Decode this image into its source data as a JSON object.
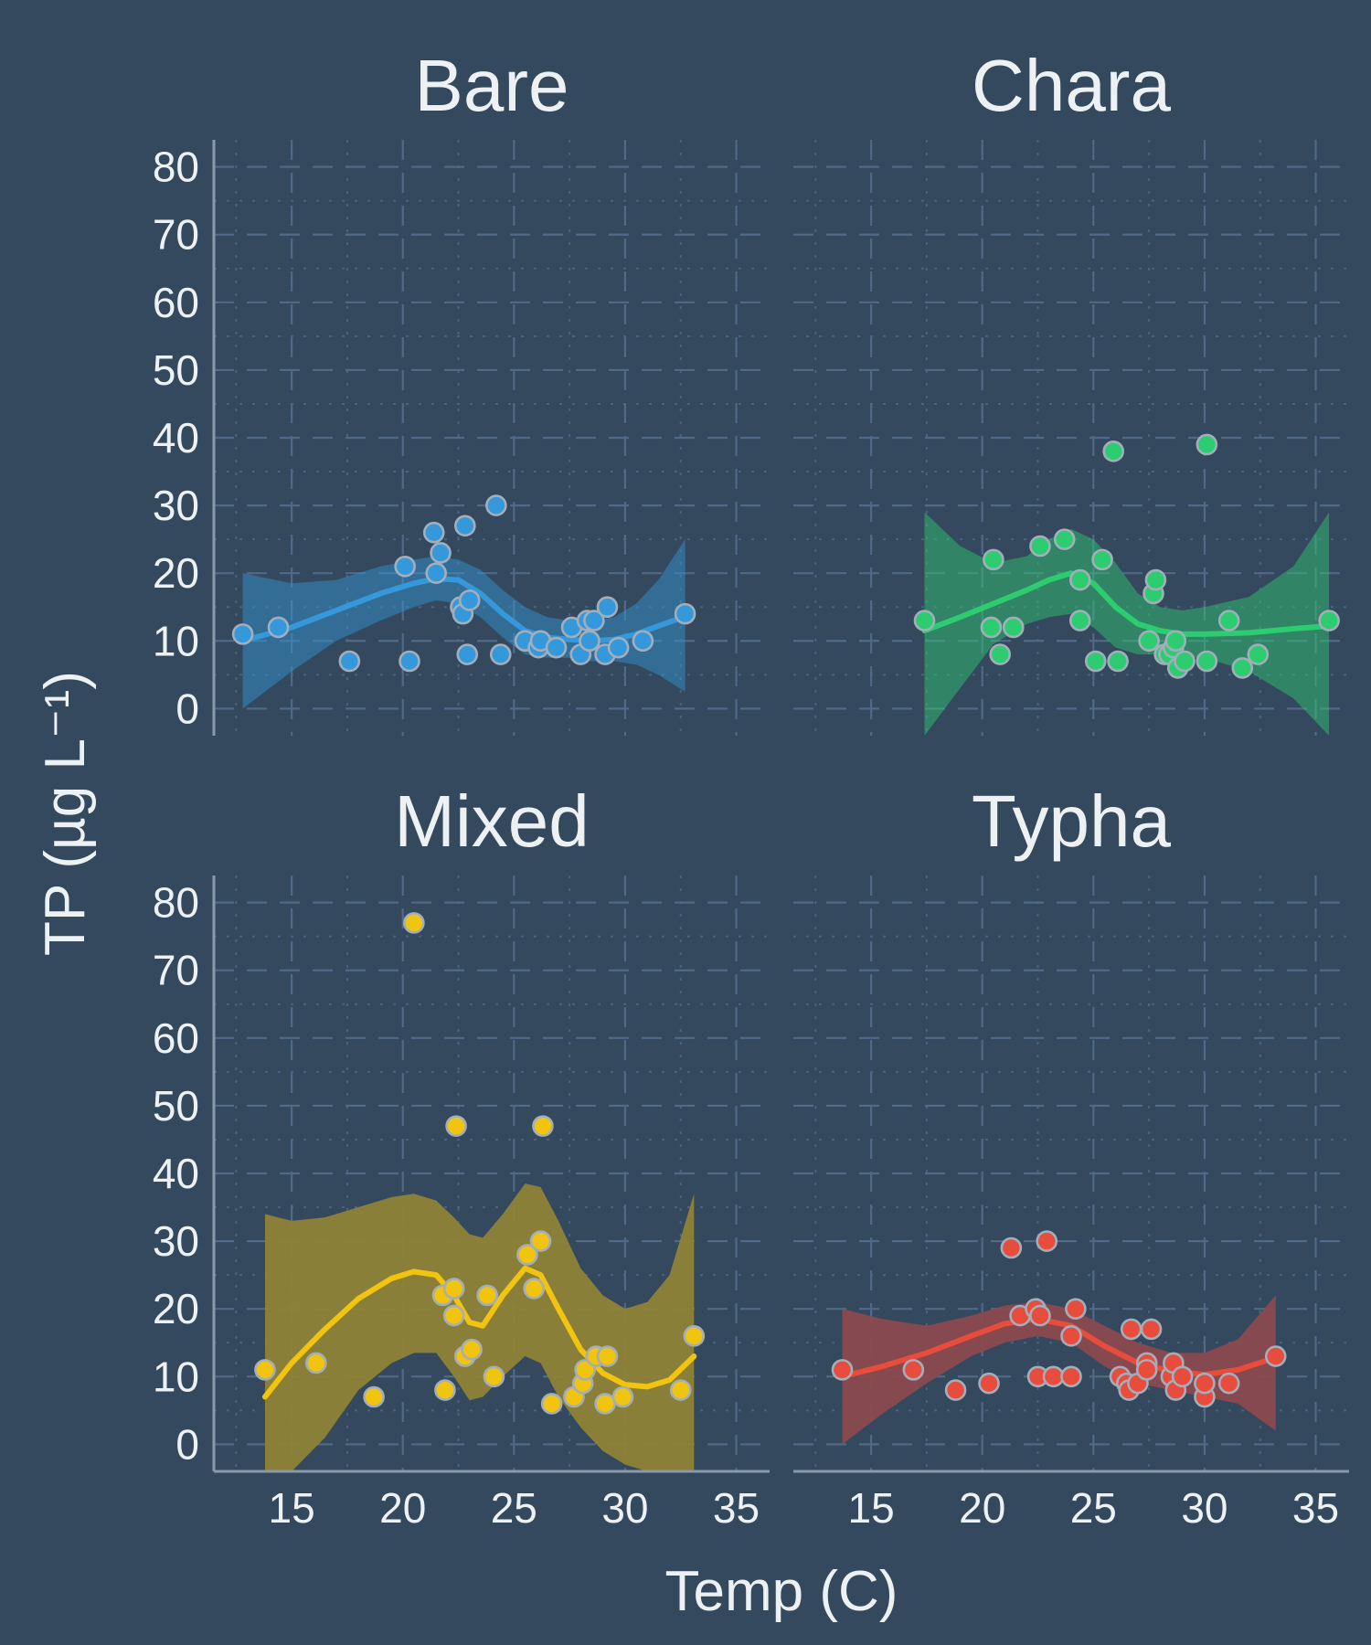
{
  "colors": {
    "background": "#34495e",
    "text": "#eef1f4",
    "Bare": "#3498db",
    "Chara": "#2ecc71",
    "Mixed": "#f1c40f",
    "Typha": "#e74c3c",
    "Mixed_ribbon": "#8f8336",
    "Typha_ribbon": "#8a4a4e"
  },
  "chart_data": {
    "type": "scatter",
    "layout": "facet_wrap 2x2",
    "xlabel": "Temp (C)",
    "ylabel": "TP (µg L⁻¹)",
    "xlim": [
      11.5,
      36.5
    ],
    "ylim": [
      -4,
      84
    ],
    "xticks": [
      15,
      20,
      25,
      30,
      35
    ],
    "yticks": [
      0,
      10,
      20,
      30,
      40,
      50,
      60,
      70,
      80
    ],
    "grid": true,
    "smooth": "loess with confidence band",
    "facets": [
      {
        "name": "Bare",
        "points": [
          [
            12.8,
            11
          ],
          [
            14.4,
            12
          ],
          [
            17.6,
            7
          ],
          [
            20.1,
            21
          ],
          [
            20.3,
            7
          ],
          [
            21.4,
            26
          ],
          [
            21.5,
            20
          ],
          [
            21.7,
            23
          ],
          [
            22.6,
            15
          ],
          [
            22.7,
            14
          ],
          [
            22.8,
            27
          ],
          [
            22.9,
            8
          ],
          [
            23.0,
            16
          ],
          [
            24.2,
            30
          ],
          [
            24.4,
            8
          ],
          [
            25.5,
            10
          ],
          [
            26.1,
            9
          ],
          [
            26.2,
            10
          ],
          [
            26.9,
            9
          ],
          [
            27.6,
            12
          ],
          [
            28.0,
            8
          ],
          [
            28.3,
            13
          ],
          [
            28.4,
            10
          ],
          [
            28.6,
            13
          ],
          [
            29.1,
            8
          ],
          [
            29.2,
            15
          ],
          [
            29.7,
            9
          ],
          [
            30.8,
            10
          ],
          [
            32.7,
            14
          ]
        ],
        "fit": [
          [
            12.8,
            10
          ],
          [
            15,
            12
          ],
          [
            17,
            14.5
          ],
          [
            19,
            17
          ],
          [
            20.5,
            18.5
          ],
          [
            21.5,
            19.2
          ],
          [
            22.5,
            19
          ],
          [
            23.5,
            17
          ],
          [
            24.5,
            14
          ],
          [
            25.5,
            11.5
          ],
          [
            26.5,
            10.5
          ],
          [
            27.5,
            10.2
          ],
          [
            28.5,
            10
          ],
          [
            29.5,
            10.2
          ],
          [
            30.5,
            11
          ],
          [
            31.5,
            12.2
          ],
          [
            32.7,
            13.6
          ]
        ],
        "upper": [
          [
            12.8,
            20
          ],
          [
            15,
            18.5
          ],
          [
            17,
            19
          ],
          [
            19,
            21
          ],
          [
            20.5,
            22
          ],
          [
            21.5,
            22.5
          ],
          [
            22.5,
            22
          ],
          [
            23.5,
            20.5
          ],
          [
            24.5,
            17.5
          ],
          [
            25.5,
            15
          ],
          [
            26.5,
            13.5
          ],
          [
            27.5,
            13
          ],
          [
            28.5,
            13
          ],
          [
            29.5,
            13.5
          ],
          [
            30.5,
            15.5
          ],
          [
            31.5,
            19
          ],
          [
            32.7,
            25
          ]
        ],
        "lower": [
          [
            12.8,
            0
          ],
          [
            15,
            5.5
          ],
          [
            17,
            10
          ],
          [
            19,
            13
          ],
          [
            20.5,
            15
          ],
          [
            21.5,
            16
          ],
          [
            22.5,
            15.5
          ],
          [
            23.5,
            13.5
          ],
          [
            24.5,
            10.5
          ],
          [
            25.5,
            8
          ],
          [
            26.5,
            7.5
          ],
          [
            27.5,
            7.5
          ],
          [
            28.5,
            7
          ],
          [
            29.5,
            7
          ],
          [
            30.5,
            6.5
          ],
          [
            31.5,
            5
          ],
          [
            32.7,
            2.5
          ]
        ]
      },
      {
        "name": "Chara",
        "points": [
          [
            17.4,
            13
          ],
          [
            20.5,
            22
          ],
          [
            20.4,
            12
          ],
          [
            20.8,
            8
          ],
          [
            21.4,
            12
          ],
          [
            22.6,
            24
          ],
          [
            23.7,
            25
          ],
          [
            24.4,
            19
          ],
          [
            24.4,
            13
          ],
          [
            25.1,
            7
          ],
          [
            25.4,
            22
          ],
          [
            25.9,
            38
          ],
          [
            26.1,
            7
          ],
          [
            27.5,
            10
          ],
          [
            27.7,
            17
          ],
          [
            27.8,
            19
          ],
          [
            28.2,
            8
          ],
          [
            28.4,
            8
          ],
          [
            28.6,
            9
          ],
          [
            28.7,
            10
          ],
          [
            28.8,
            6
          ],
          [
            29.1,
            7
          ],
          [
            30.1,
            39
          ],
          [
            30.1,
            7
          ],
          [
            31.1,
            13
          ],
          [
            31.7,
            6
          ],
          [
            32.4,
            8
          ],
          [
            35.6,
            13
          ]
        ],
        "fit": [
          [
            17.4,
            11.5
          ],
          [
            19,
            13.5
          ],
          [
            20.5,
            15.5
          ],
          [
            22,
            17.5
          ],
          [
            23,
            19
          ],
          [
            24,
            20
          ],
          [
            25,
            18.5
          ],
          [
            26,
            15
          ],
          [
            27,
            12.5
          ],
          [
            28,
            11.5
          ],
          [
            29,
            11
          ],
          [
            30,
            11
          ],
          [
            32,
            11.2
          ],
          [
            34,
            11.8
          ],
          [
            35.6,
            12.2
          ]
        ],
        "upper": [
          [
            17.4,
            29
          ],
          [
            19,
            24
          ],
          [
            20.5,
            21.5
          ],
          [
            22,
            22.5
          ],
          [
            23,
            25
          ],
          [
            24,
            26.5
          ],
          [
            25,
            25
          ],
          [
            26,
            21.5
          ],
          [
            27,
            17
          ],
          [
            28,
            15
          ],
          [
            29,
            14.5
          ],
          [
            30,
            15
          ],
          [
            32,
            16.5
          ],
          [
            34,
            21
          ],
          [
            35.6,
            29
          ]
        ],
        "lower": [
          [
            17.4,
            -4
          ],
          [
            19,
            3
          ],
          [
            20.5,
            9.5
          ],
          [
            22,
            12.5
          ],
          [
            23,
            13.5
          ],
          [
            24,
            14
          ],
          [
            25,
            12
          ],
          [
            26,
            9
          ],
          [
            27,
            8
          ],
          [
            28,
            8
          ],
          [
            29,
            7.5
          ],
          [
            30,
            7.5
          ],
          [
            32,
            5.5
          ],
          [
            34,
            1.5
          ],
          [
            35.6,
            -4
          ]
        ]
      },
      {
        "name": "Mixed",
        "points": [
          [
            13.8,
            11
          ],
          [
            16.1,
            12
          ],
          [
            18.7,
            7
          ],
          [
            20.5,
            77
          ],
          [
            21.8,
            22
          ],
          [
            21.9,
            8
          ],
          [
            22.3,
            19
          ],
          [
            22.3,
            23
          ],
          [
            22.4,
            47
          ],
          [
            22.8,
            13
          ],
          [
            23.1,
            14
          ],
          [
            23.8,
            22
          ],
          [
            24.1,
            10
          ],
          [
            25.6,
            28
          ],
          [
            25.9,
            23
          ],
          [
            26.2,
            30
          ],
          [
            26.3,
            47
          ],
          [
            26.7,
            6
          ],
          [
            27.7,
            7
          ],
          [
            28.1,
            9
          ],
          [
            28.2,
            11
          ],
          [
            28.7,
            13
          ],
          [
            29.1,
            6
          ],
          [
            29.2,
            13
          ],
          [
            29.9,
            7
          ],
          [
            32.5,
            8
          ],
          [
            33.1,
            16
          ]
        ],
        "fit": [
          [
            13.8,
            7
          ],
          [
            15,
            12
          ],
          [
            16.5,
            17
          ],
          [
            18,
            21.5
          ],
          [
            19.5,
            24.5
          ],
          [
            20.5,
            25.5
          ],
          [
            21.5,
            25
          ],
          [
            22.3,
            22
          ],
          [
            23,
            18
          ],
          [
            23.6,
            17.5
          ],
          [
            24.5,
            22
          ],
          [
            25.5,
            26
          ],
          [
            26.2,
            25
          ],
          [
            27,
            20
          ],
          [
            28,
            14
          ],
          [
            29,
            10.5
          ],
          [
            30,
            8.8
          ],
          [
            31,
            8.5
          ],
          [
            32,
            9.5
          ],
          [
            33.1,
            13
          ]
        ],
        "upper": [
          [
            13.8,
            34
          ],
          [
            15,
            33
          ],
          [
            16.5,
            33.5
          ],
          [
            18,
            35
          ],
          [
            19.5,
            36.5
          ],
          [
            20.5,
            37
          ],
          [
            21.5,
            36
          ],
          [
            22.3,
            33.5
          ],
          [
            23,
            31
          ],
          [
            23.6,
            30.5
          ],
          [
            24.5,
            34
          ],
          [
            25.5,
            38.5
          ],
          [
            26.2,
            38
          ],
          [
            27,
            33
          ],
          [
            28,
            26
          ],
          [
            29,
            22
          ],
          [
            30,
            20
          ],
          [
            31,
            21
          ],
          [
            32,
            25
          ],
          [
            33.1,
            37
          ]
        ],
        "lower": [
          [
            13.8,
            -4
          ],
          [
            15,
            -4
          ],
          [
            16.5,
            1
          ],
          [
            18,
            8
          ],
          [
            19.5,
            12
          ],
          [
            20.5,
            13.5
          ],
          [
            21.5,
            13.5
          ],
          [
            22.3,
            10
          ],
          [
            23,
            6.5
          ],
          [
            23.6,
            7
          ],
          [
            24.5,
            10
          ],
          [
            25.5,
            13
          ],
          [
            26.2,
            12
          ],
          [
            27,
            7
          ],
          [
            28,
            2.5
          ],
          [
            29,
            -1
          ],
          [
            30,
            -3
          ],
          [
            31,
            -4
          ],
          [
            32,
            -4
          ],
          [
            33.1,
            -4
          ]
        ]
      },
      {
        "name": "Typha",
        "points": [
          [
            13.7,
            11
          ],
          [
            16.9,
            11
          ],
          [
            18.8,
            8
          ],
          [
            20.3,
            9
          ],
          [
            21.3,
            29
          ],
          [
            21.7,
            19
          ],
          [
            22.4,
            20
          ],
          [
            22.6,
            19
          ],
          [
            22.5,
            10
          ],
          [
            22.9,
            30
          ],
          [
            23.2,
            10
          ],
          [
            24,
            16
          ],
          [
            24.2,
            20
          ],
          [
            24,
            10
          ],
          [
            26.2,
            10
          ],
          [
            26.5,
            9
          ],
          [
            26.6,
            8
          ],
          [
            26.7,
            17
          ],
          [
            27,
            9
          ],
          [
            27.4,
            12
          ],
          [
            27.4,
            11
          ],
          [
            27.6,
            17
          ],
          [
            28.5,
            10
          ],
          [
            28.6,
            12
          ],
          [
            28.7,
            8
          ],
          [
            29.0,
            10
          ],
          [
            30,
            7
          ],
          [
            30,
            9
          ],
          [
            31.1,
            9
          ],
          [
            33.2,
            13
          ]
        ],
        "fit": [
          [
            13.7,
            10
          ],
          [
            15.5,
            11.5
          ],
          [
            17.5,
            13.5
          ],
          [
            19.5,
            16
          ],
          [
            21,
            17.8
          ],
          [
            22.5,
            18.5
          ],
          [
            24,
            17.5
          ],
          [
            25.5,
            14.5
          ],
          [
            27,
            12
          ],
          [
            28.5,
            10.8
          ],
          [
            30,
            10.3
          ],
          [
            31.5,
            11
          ],
          [
            33.2,
            12.8
          ]
        ],
        "upper": [
          [
            13.7,
            20
          ],
          [
            15.5,
            18.5
          ],
          [
            17.5,
            17.5
          ],
          [
            19.5,
            19
          ],
          [
            21,
            20.5
          ],
          [
            22.5,
            21
          ],
          [
            24,
            20
          ],
          [
            25.5,
            17.5
          ],
          [
            27,
            15
          ],
          [
            28.5,
            13.5
          ],
          [
            30,
            13.5
          ],
          [
            31.5,
            15.5
          ],
          [
            33.2,
            22
          ]
        ],
        "lower": [
          [
            13.7,
            0
          ],
          [
            15.5,
            4.5
          ],
          [
            17.5,
            9
          ],
          [
            19.5,
            13
          ],
          [
            21,
            15
          ],
          [
            22.5,
            16
          ],
          [
            24,
            15
          ],
          [
            25.5,
            11.5
          ],
          [
            27,
            9
          ],
          [
            28.5,
            8
          ],
          [
            30,
            7
          ],
          [
            31.5,
            6
          ],
          [
            33.2,
            2
          ]
        ]
      }
    ]
  }
}
